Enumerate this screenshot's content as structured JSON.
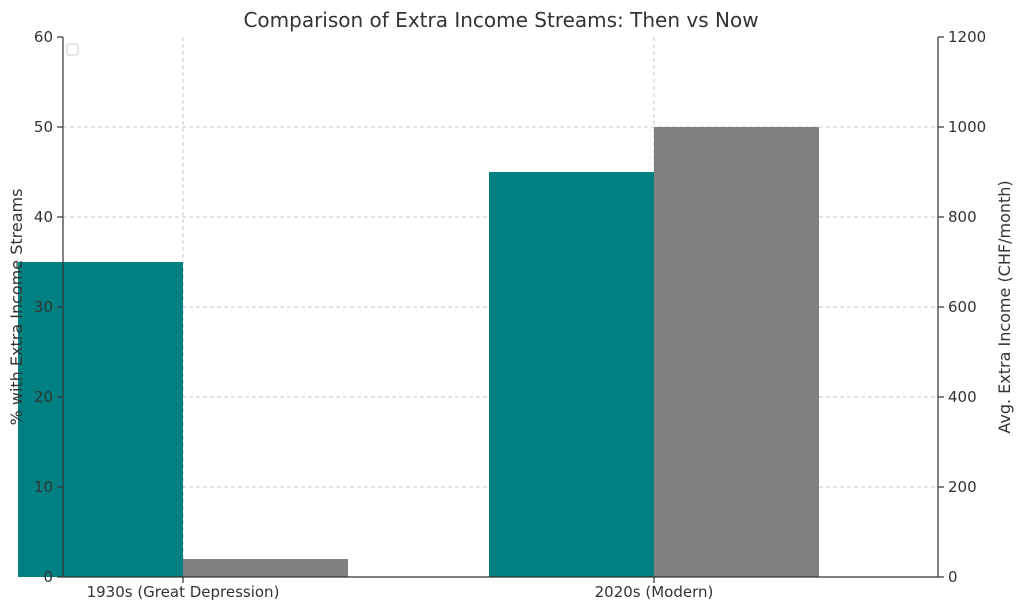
{
  "chart_data": {
    "type": "bar",
    "title": "Comparison of Extra Income Streams: Then vs Now",
    "categories": [
      "1930s (Great Depression)",
      "2020s (Modern)"
    ],
    "series": [
      {
        "axis": "left",
        "color": "#008080",
        "values": [
          35,
          45
        ]
      },
      {
        "axis": "right",
        "color": "#808080",
        "values": [
          40,
          1000
        ]
      }
    ],
    "ylabel": "% with Extra Income Streams",
    "ylim": [
      0,
      60
    ],
    "yticks": [
      "0",
      "10",
      "20",
      "30",
      "40",
      "50",
      "60"
    ],
    "y2label": "Avg. Extra Income (CHF/month)",
    "y2lim": [
      0,
      1200
    ],
    "y2ticks": [
      "0",
      "200",
      "400",
      "600",
      "800",
      "1000",
      "1200"
    ],
    "grid": true,
    "legend": "top-left"
  }
}
